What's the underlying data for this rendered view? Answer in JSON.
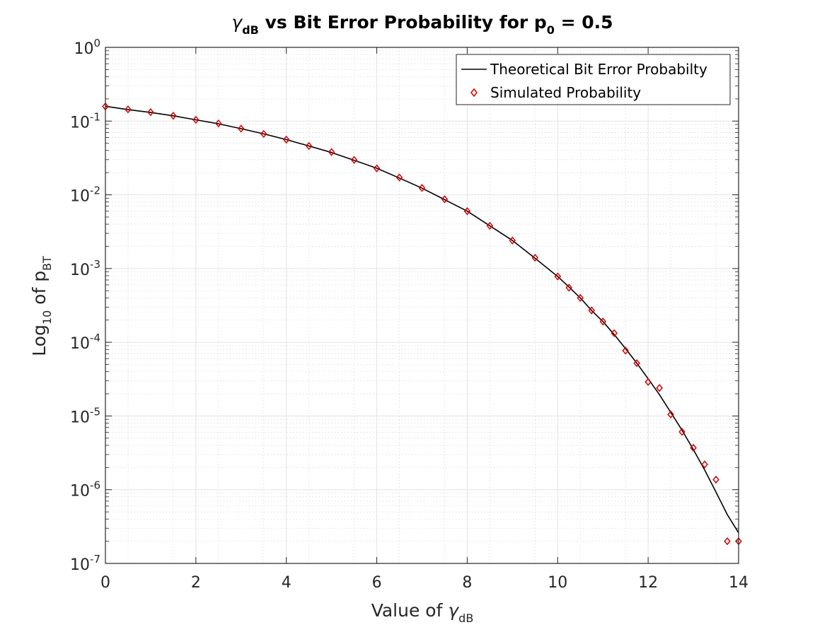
{
  "chart_data": {
    "type": "line",
    "title_parts": {
      "gamma": "γ",
      "gamma_sub": "dB",
      "middle": " vs Bit Error Probability for p",
      "p_sub": "0",
      "tail": " = 0.5"
    },
    "xlabel_parts": {
      "main": "Value of ",
      "gamma": "γ",
      "gamma_sub": "dB"
    },
    "ylabel_parts": {
      "log": "Log",
      "log_sub": "10",
      "of": " of p",
      "p_sub": "BT"
    },
    "xlim": [
      0,
      14
    ],
    "ylim": [
      1e-07,
      1
    ],
    "yscale": "log",
    "grid": true,
    "minor_grid": true,
    "legend_position": "top-right",
    "x_ticks": [
      "0",
      "2",
      "4",
      "6",
      "8",
      "10",
      "12",
      "14"
    ],
    "y_ticks": [
      {
        "base": "10",
        "exp": "0"
      },
      {
        "base": "10",
        "exp": "-1"
      },
      {
        "base": "10",
        "exp": "-2"
      },
      {
        "base": "10",
        "exp": "-3"
      },
      {
        "base": "10",
        "exp": "-4"
      },
      {
        "base": "10",
        "exp": "-5"
      },
      {
        "base": "10",
        "exp": "-6"
      },
      {
        "base": "10",
        "exp": "-7"
      }
    ],
    "series": [
      {
        "name": "Theoretical Bit Error Probabilty",
        "style": "line",
        "color": "#000000",
        "x": [
          0,
          0.5,
          1,
          1.5,
          2,
          2.5,
          3,
          3.5,
          4,
          4.5,
          5,
          5.5,
          6,
          6.5,
          7,
          7.5,
          8,
          8.5,
          9,
          9.5,
          10,
          10.25,
          10.5,
          10.75,
          11,
          11.25,
          11.5,
          11.75,
          12,
          12.25,
          12.5,
          12.75,
          13,
          13.25,
          13.5,
          13.75,
          14
        ],
        "y": [
          0.159,
          0.143,
          0.131,
          0.118,
          0.104,
          0.092,
          0.079,
          0.067,
          0.056,
          0.046,
          0.0375,
          0.0294,
          0.0229,
          0.0169,
          0.0123,
          0.0086,
          0.006,
          0.0038,
          0.0024,
          0.00138,
          0.00078,
          0.00056,
          0.0004,
          0.00027,
          0.000191,
          0.000127,
          8.2e-05,
          5.2e-05,
          3.2e-05,
          1.95e-05,
          1.12e-05,
          6.4e-06,
          3.5e-06,
          1.85e-06,
          9.3e-07,
          4.6e-07,
          2.6e-07
        ]
      },
      {
        "name": "Simulated Probability",
        "style": "marker",
        "marker": "diamond",
        "color": "#d40000",
        "x": [
          0,
          0.5,
          1,
          1.5,
          2,
          2.5,
          3,
          3.5,
          4,
          4.5,
          5,
          5.5,
          6,
          6.5,
          7,
          7.5,
          8,
          8.5,
          9,
          9.5,
          10,
          10.25,
          10.5,
          10.75,
          11,
          11.25,
          11.5,
          11.75,
          12,
          12.25,
          12.5,
          12.75,
          13,
          13.25,
          13.5,
          13.75,
          14
        ],
        "y": [
          0.158,
          0.144,
          0.132,
          0.118,
          0.104,
          0.093,
          0.079,
          0.067,
          0.056,
          0.046,
          0.038,
          0.0297,
          0.0228,
          0.0172,
          0.0124,
          0.0087,
          0.006,
          0.0038,
          0.0024,
          0.0014,
          0.00078,
          0.00055,
          0.0004,
          0.00027,
          0.000191,
          0.000133,
          7.7e-05,
          5.2e-05,
          2.9e-05,
          2.4e-05,
          1.05e-05,
          6.1e-06,
          3.7e-06,
          2.2e-06,
          1.37e-06,
          2e-07,
          2e-07
        ]
      }
    ]
  }
}
